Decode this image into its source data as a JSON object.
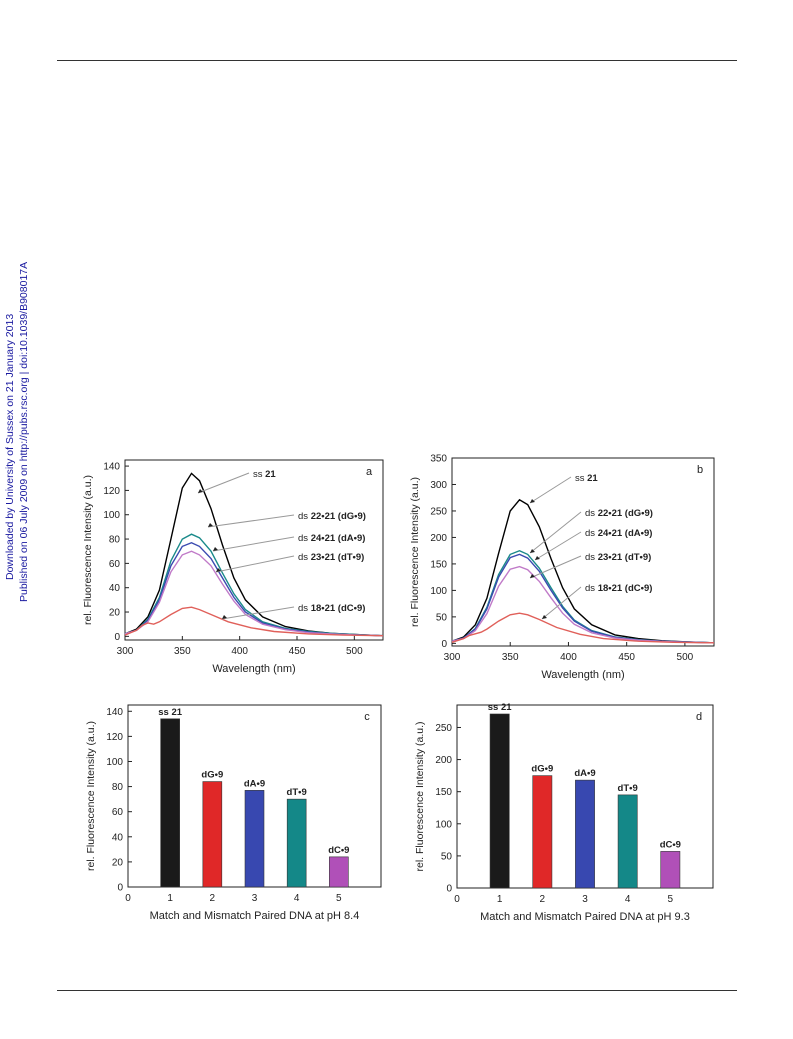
{
  "watermark": {
    "line1": "Downloaded by University of Sussex on 21 January 2013",
    "line2": "Published on 06 July 2009 on http://pubs.rsc.org | doi:10.1039/B908017A"
  },
  "chart_data": [
    {
      "type": "line",
      "panel_letter": "a",
      "xlabel": "Wavelength (nm)",
      "ylabel": "rel. Fluorescence Intensity (a.u.)",
      "xlim": [
        300,
        525
      ],
      "ylim": [
        -3,
        145
      ],
      "xticks": [
        300,
        350,
        400,
        450,
        500
      ],
      "yticks": [
        0,
        20,
        40,
        60,
        80,
        100,
        120,
        140
      ],
      "series": [
        {
          "color": "#000000",
          "x": [
            300,
            310,
            320,
            330,
            340,
            350,
            358,
            365,
            375,
            385,
            395,
            405,
            420,
            440,
            460,
            480,
            500,
            525
          ],
          "y": [
            2,
            6,
            16,
            38,
            80,
            122,
            134,
            128,
            105,
            75,
            48,
            30,
            16,
            8,
            4.5,
            2.5,
            1.5,
            0.5
          ]
        },
        {
          "color": "#1a8a8a",
          "x": [
            300,
            310,
            320,
            330,
            340,
            350,
            358,
            365,
            375,
            385,
            395,
            405,
            420,
            440,
            460,
            480,
            500,
            525
          ],
          "y": [
            2,
            5,
            14,
            32,
            62,
            80,
            84,
            81,
            70,
            52,
            35,
            22,
            12,
            6.5,
            4,
            2.5,
            1.5,
            0.5
          ]
        },
        {
          "color": "#3a4ab0",
          "x": [
            300,
            310,
            320,
            330,
            340,
            350,
            358,
            365,
            375,
            385,
            395,
            405,
            420,
            440,
            460,
            480,
            500,
            525
          ],
          "y": [
            2,
            5,
            13,
            30,
            58,
            74,
            77,
            74,
            64,
            48,
            32,
            20,
            11,
            6,
            3.5,
            2,
            1.3,
            0.5
          ]
        },
        {
          "color": "#c07ac8",
          "x": [
            300,
            310,
            320,
            330,
            340,
            350,
            358,
            365,
            375,
            385,
            395,
            405,
            420,
            440,
            460,
            480,
            500,
            525
          ],
          "y": [
            2,
            5,
            12,
            28,
            53,
            67,
            70,
            67,
            58,
            43,
            29,
            18,
            10,
            5.5,
            3,
            2,
            1.2,
            0.5
          ]
        },
        {
          "color": "#e0605a",
          "x": [
            300,
            310,
            315,
            320,
            325,
            330,
            340,
            350,
            358,
            365,
            375,
            390,
            410,
            430,
            460,
            490,
            525
          ],
          "y": [
            1,
            5,
            9,
            11,
            10,
            12,
            18,
            23,
            24,
            22,
            18,
            12,
            7,
            4,
            2,
            1,
            0.5
          ]
        }
      ],
      "annotations": [
        {
          "label_prefix": "ds",
          "label_bold": "18•21 (dC•9)"
        },
        {
          "label_prefix": "ds",
          "label_bold": "23•21 (dT•9)"
        },
        {
          "label_prefix": "ds",
          "label_bold": "24•21 (dA•9)"
        },
        {
          "label_prefix": "ds",
          "label_bold": "22•21 (dG•9)"
        },
        {
          "label_prefix": "ss",
          "label_bold": "21"
        }
      ]
    },
    {
      "type": "line",
      "panel_letter": "b",
      "xlabel": "Wavelength (nm)",
      "ylabel": "rel. Fluorescence Intensity (a.u.)",
      "xlim": [
        300,
        525
      ],
      "ylim": [
        -5,
        350
      ],
      "xticks": [
        300,
        350,
        400,
        450,
        500
      ],
      "yticks": [
        0,
        50,
        100,
        150,
        200,
        250,
        300,
        350
      ],
      "series": [
        {
          "color": "#000000",
          "x": [
            300,
            310,
            320,
            330,
            340,
            350,
            358,
            365,
            375,
            385,
            395,
            405,
            420,
            440,
            460,
            480,
            500,
            525
          ],
          "y": [
            4,
            12,
            35,
            85,
            170,
            250,
            271,
            262,
            220,
            160,
            105,
            65,
            35,
            16,
            9,
            5,
            3,
            1
          ]
        },
        {
          "color": "#1a8a8a",
          "x": [
            300,
            310,
            320,
            330,
            340,
            350,
            358,
            365,
            375,
            385,
            395,
            405,
            420,
            440,
            460,
            480,
            500,
            525
          ],
          "y": [
            4,
            10,
            28,
            68,
            130,
            168,
            175,
            168,
            142,
            105,
            70,
            44,
            24,
            12,
            7,
            4,
            2.5,
            1
          ]
        },
        {
          "color": "#3a4ab0",
          "x": [
            300,
            310,
            320,
            330,
            340,
            350,
            358,
            365,
            375,
            385,
            395,
            405,
            420,
            440,
            460,
            480,
            500,
            525
          ],
          "y": [
            4,
            10,
            27,
            65,
            125,
            162,
            168,
            161,
            136,
            100,
            67,
            42,
            23,
            11.5,
            6.5,
            4,
            2.5,
            1
          ]
        },
        {
          "color": "#c07ac8",
          "x": [
            300,
            310,
            320,
            330,
            340,
            350,
            358,
            365,
            375,
            385,
            395,
            405,
            420,
            440,
            460,
            480,
            500,
            525
          ],
          "y": [
            4,
            9,
            24,
            56,
            108,
            140,
            145,
            139,
            117,
            86,
            57,
            36,
            20,
            10,
            6,
            3.5,
            2,
            1
          ]
        },
        {
          "color": "#e0605a",
          "x": [
            300,
            310,
            315,
            320,
            325,
            330,
            340,
            350,
            358,
            365,
            375,
            390,
            410,
            430,
            460,
            490,
            525
          ],
          "y": [
            2,
            9,
            15,
            18,
            21,
            27,
            42,
            54,
            57,
            54,
            45,
            30,
            17,
            9,
            4,
            2,
            1
          ]
        }
      ],
      "annotations": [
        {
          "label_prefix": "ds",
          "label_bold": "18•21 (dC•9)"
        },
        {
          "label_prefix": "ds",
          "label_bold": "23•21 (dT•9)"
        },
        {
          "label_prefix": "ds",
          "label_bold": "24•21 (dA•9)"
        },
        {
          "label_prefix": "ds",
          "label_bold": "22•21 (dG•9)"
        },
        {
          "label_prefix": "ss",
          "label_bold": "21"
        }
      ]
    },
    {
      "type": "bar",
      "panel_letter": "c",
      "xlabel": "Match and Mismatch Paired DNA at pH 8.4",
      "ylabel": "rel. Fluorescence Intensity (a.u.)",
      "xlim": [
        0,
        6
      ],
      "ylim": [
        0,
        145
      ],
      "xticks": [
        0,
        1,
        2,
        3,
        4,
        5
      ],
      "yticks": [
        0,
        20,
        40,
        60,
        80,
        100,
        120,
        140
      ],
      "categories": [
        1,
        2,
        3,
        4,
        5
      ],
      "values": [
        134,
        84,
        77,
        70,
        24
      ],
      "bar_labels": [
        "ss 21",
        "dG•9",
        "dA•9",
        "dT•9",
        "dC•9"
      ],
      "colors": [
        "#1a1a1a",
        "#e02828",
        "#3848b0",
        "#148888",
        "#b050b8"
      ]
    },
    {
      "type": "bar",
      "panel_letter": "d",
      "xlabel": "Match and Mismatch Paired DNA at pH 9.3",
      "ylabel": "rel. Fluorescence Intensity (a.u.)",
      "xlim": [
        0,
        6
      ],
      "ylim": [
        0,
        285
      ],
      "xticks": [
        0,
        1,
        2,
        3,
        4,
        5
      ],
      "yticks": [
        0,
        50,
        100,
        150,
        200,
        250
      ],
      "categories": [
        1,
        2,
        3,
        4,
        5
      ],
      "values": [
        271,
        175,
        168,
        145,
        57
      ],
      "bar_labels": [
        "ss 21",
        "dG•9",
        "dA•9",
        "dT•9",
        "dC•9"
      ],
      "colors": [
        "#1a1a1a",
        "#e02828",
        "#3848b0",
        "#148888",
        "#b050b8"
      ]
    }
  ]
}
